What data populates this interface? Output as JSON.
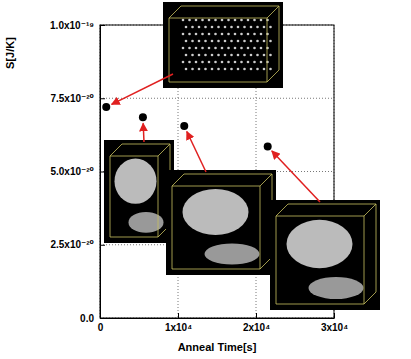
{
  "chart_data": {
    "type": "scatter",
    "x": [
      800,
      5500,
      10800,
      21500
    ],
    "values": [
      7.2e-20,
      6.85e-20,
      6.55e-20,
      5.85e-20
    ],
    "color": "#000000",
    "marker": "circle",
    "xlabel": "Anneal Time[s]",
    "ylabel": "S[J/K]",
    "xlim": [
      0,
      30000
    ],
    "xticks": [
      0,
      {
        "value": 10000,
        "label": "1x10⁴"
      },
      {
        "value": 20000,
        "label": "2x10⁴"
      },
      {
        "value": 30000,
        "label": "3x10⁴"
      }
    ],
    "ylim": [
      0,
      1e-19
    ],
    "yticks": [
      {
        "value": 0,
        "label": "0.0"
      },
      {
        "value": 2.5e-20,
        "label": "2.5x10⁻²⁰"
      },
      {
        "value": 5e-20,
        "label": "5.0x10⁻²⁰"
      },
      {
        "value": 7.5e-20,
        "label": "7.5x10⁻²⁰"
      },
      {
        "value": 1e-19,
        "label": "1.0x10⁻¹⁹"
      }
    ],
    "grid": true
  }
}
